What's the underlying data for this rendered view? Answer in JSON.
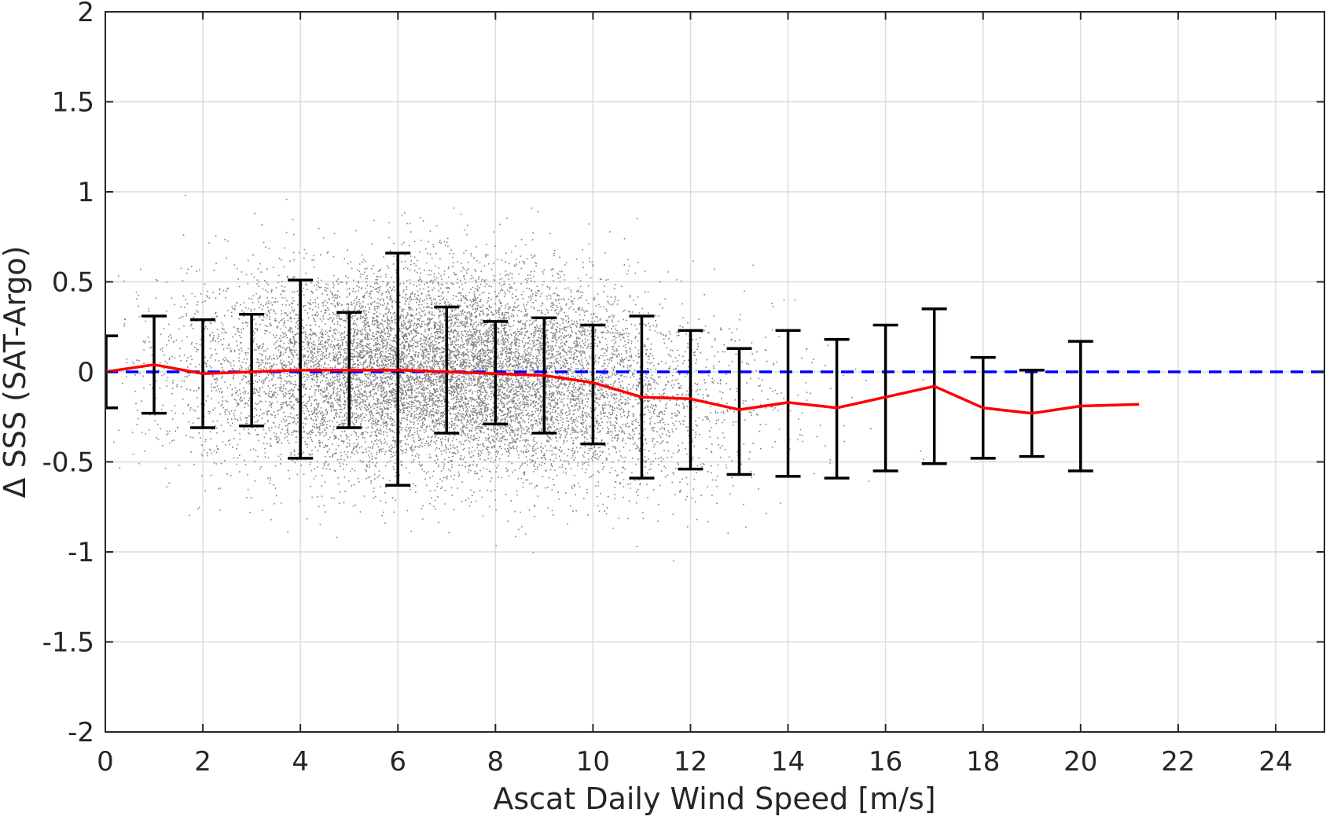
{
  "chart_data": {
    "type": "scatter",
    "title": "",
    "xlabel": "Ascat Daily Wind Speed [m/s]",
    "ylabel": "Δ SSS (SAT-Argo)",
    "xlim": [
      0,
      25
    ],
    "ylim": [
      -2,
      2
    ],
    "xticks": [
      0,
      2,
      4,
      6,
      8,
      10,
      12,
      14,
      16,
      18,
      20,
      22,
      24
    ],
    "yticks": [
      2,
      1.5,
      1,
      0.5,
      0,
      -0.5,
      -1,
      -1.5,
      -2
    ],
    "grid": true,
    "colors": {
      "scatter": "#808080",
      "mean_line": "#ff0000",
      "zero_line": "#0000ff",
      "error_bars": "#000000",
      "grid": "#dcdcdc",
      "axes": "#262626"
    },
    "reference_line": {
      "y": 0,
      "style": "dashed"
    },
    "scatter": {
      "description_note_excluded": true,
      "count_estimate": 12000,
      "density_peak_x": 7,
      "x_spread_sd": 2.6,
      "y_spread_sd": 0.28
    },
    "mean_line": {
      "x": [
        0,
        1,
        2,
        3,
        4,
        5,
        6,
        7,
        8,
        9,
        10,
        11,
        12,
        13,
        14,
        15,
        16,
        17,
        18,
        19,
        20,
        21.2
      ],
      "y": [
        0.0,
        0.04,
        -0.01,
        0.0,
        0.01,
        0.01,
        0.01,
        0.0,
        -0.01,
        -0.02,
        -0.06,
        -0.14,
        -0.15,
        -0.21,
        -0.17,
        -0.2,
        -0.14,
        -0.08,
        -0.2,
        -0.23,
        -0.19,
        -0.18
      ]
    },
    "error_bars": {
      "x": [
        0,
        1,
        2,
        3,
        4,
        5,
        6,
        7,
        8,
        9,
        10,
        11,
        12,
        13,
        14,
        15,
        16,
        17,
        18,
        19,
        20
      ],
      "lower": [
        -0.2,
        -0.23,
        -0.31,
        -0.3,
        -0.48,
        -0.31,
        -0.63,
        -0.34,
        -0.29,
        -0.34,
        -0.4,
        -0.59,
        -0.54,
        -0.57,
        -0.58,
        -0.59,
        -0.55,
        -0.51,
        -0.48,
        -0.47,
        -0.55
      ],
      "upper": [
        0.2,
        0.31,
        0.29,
        0.32,
        0.51,
        0.33,
        0.66,
        0.36,
        0.28,
        0.3,
        0.26,
        0.31,
        0.23,
        0.13,
        0.23,
        0.18,
        0.26,
        0.35,
        0.08,
        0.01,
        0.17
      ]
    }
  }
}
